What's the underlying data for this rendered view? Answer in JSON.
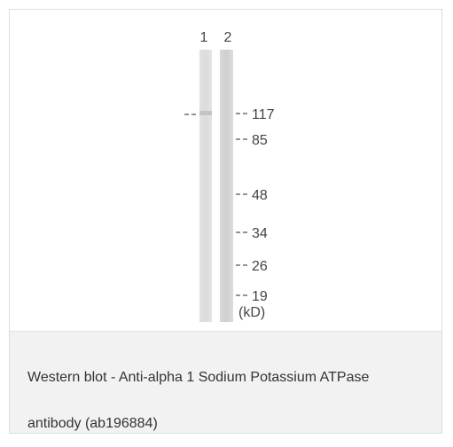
{
  "figure": {
    "lanes": [
      "1",
      "2"
    ],
    "markers": [
      117,
      85,
      48,
      34,
      26,
      19
    ],
    "unit": "(kD)"
  },
  "caption": "Western blot - Anti-alpha 1 Sodium Potassium ATPase antibody (ab196884)"
}
